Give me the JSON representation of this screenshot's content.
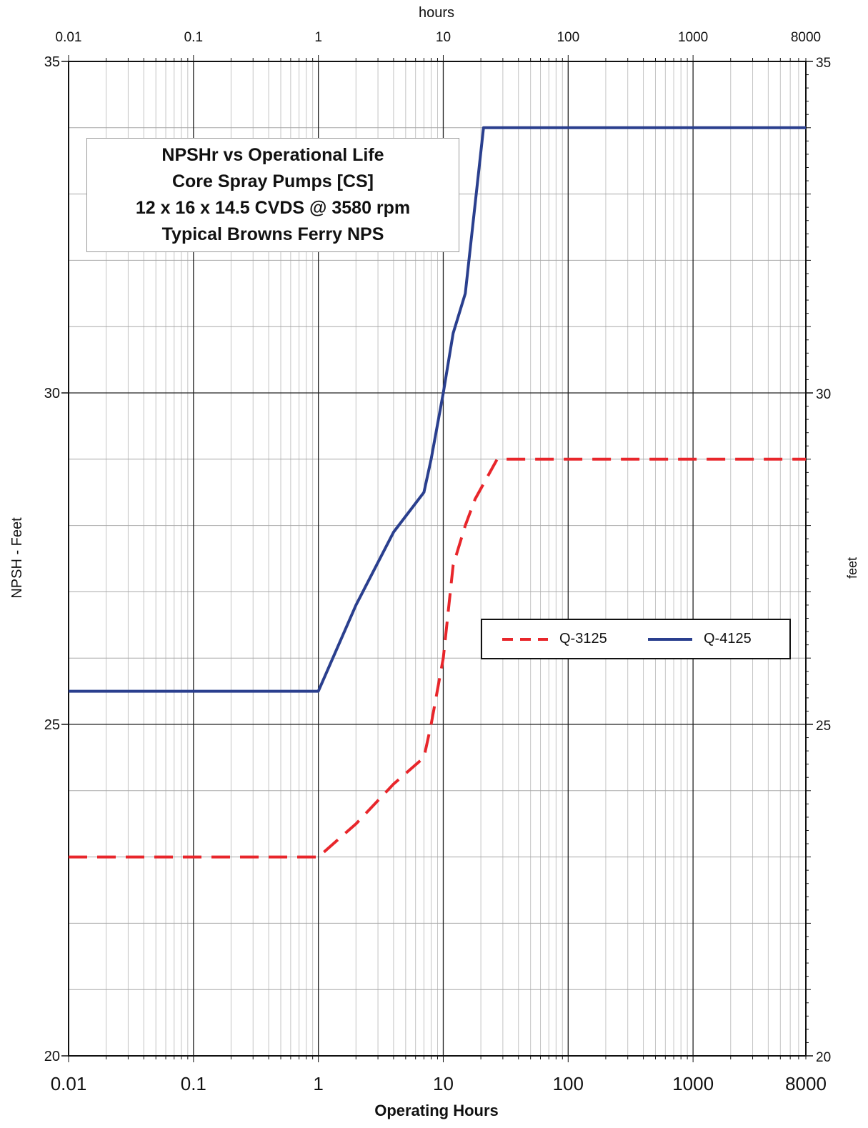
{
  "chart_data": {
    "type": "line",
    "title": [
      "NPSHr vs Operational Life",
      "Core Spray Pumps [CS]",
      "12 x 16 x 14.5 CVDS @ 3580 rpm",
      "Typical Browns Ferry NPS"
    ],
    "xlabel": "Operating Hours",
    "xlabel_top": "hours",
    "ylabel": "NPSH - Feet",
    "ylabel_right": "feet",
    "x_scale": "log",
    "xlim": [
      0.01,
      8000
    ],
    "ylim": [
      20,
      35
    ],
    "x_ticks": [
      0.01,
      0.1,
      1,
      10,
      100,
      1000,
      8000
    ],
    "x_tick_labels": [
      "0.01",
      "0.1",
      "1",
      "10",
      "100",
      "1000",
      "8000"
    ],
    "y_ticks": [
      20,
      25,
      30,
      35
    ],
    "y_tick_labels": [
      "20",
      "25",
      "30",
      "35"
    ],
    "grid": true,
    "legend_position": "center-right",
    "series": [
      {
        "name": "Q-3125",
        "style": "dashed",
        "color": "#e8262b",
        "x": [
          0.01,
          1,
          2,
          4,
          7,
          8,
          10,
          12,
          15,
          18,
          27,
          8000
        ],
        "y": [
          23.0,
          23.0,
          23.5,
          24.1,
          24.5,
          25.0,
          26.0,
          27.4,
          28.0,
          28.4,
          29.0,
          29.0
        ]
      },
      {
        "name": "Q-4125",
        "style": "solid",
        "color": "#2a3f8e",
        "x": [
          0.01,
          1,
          2,
          4,
          7,
          8,
          10,
          12,
          15,
          21,
          8000
        ],
        "y": [
          25.5,
          25.5,
          26.8,
          27.9,
          28.5,
          29.0,
          30.0,
          30.9,
          31.5,
          34.0,
          34.0
        ]
      }
    ]
  }
}
